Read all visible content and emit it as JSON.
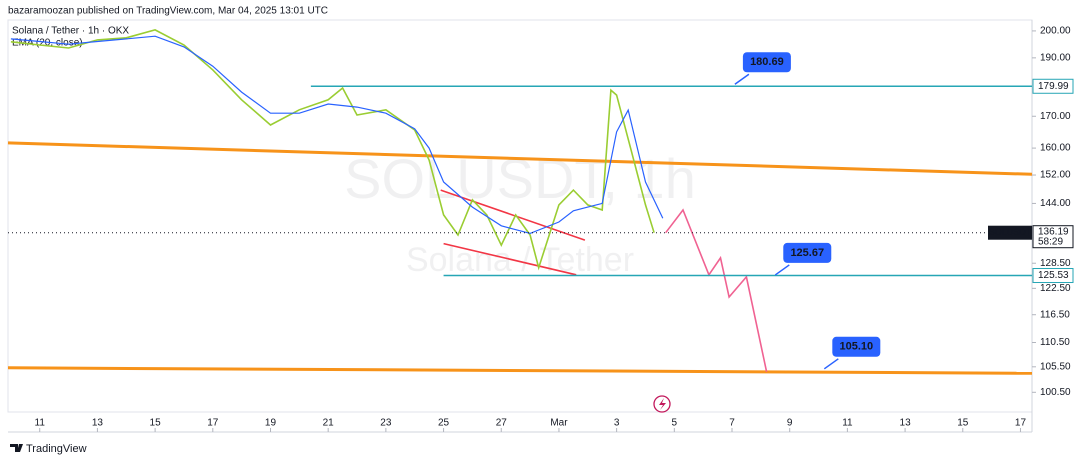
{
  "header": "bazaramoozan published on TradingView.com, Mar 04, 2025 13:01 UTC",
  "footer": "TradingView",
  "chart_data": {
    "type": "line",
    "title": "Solana / Tether · 1h · OKX",
    "indicator": "EMA (20, close)",
    "watermark": "SOLUSDT, 1h",
    "watermark_sub": "Solana / Tether",
    "log_scale": true,
    "xlim": [
      -1.1,
      34.4
    ],
    "xticks": [
      {
        "value": 0,
        "label": "11"
      },
      {
        "value": 2,
        "label": "13"
      },
      {
        "value": 4,
        "label": "15"
      },
      {
        "value": 6,
        "label": "17"
      },
      {
        "value": 8,
        "label": "19"
      },
      {
        "value": 10,
        "label": "21"
      },
      {
        "value": 12,
        "label": "23"
      },
      {
        "value": 14,
        "label": "25"
      },
      {
        "value": 16,
        "label": "27"
      },
      {
        "value": 18,
        "label": "Mar"
      },
      {
        "value": 20,
        "label": "3"
      },
      {
        "value": 22,
        "label": "5"
      },
      {
        "value": 24,
        "label": "7"
      },
      {
        "value": 26,
        "label": "9"
      },
      {
        "value": 28,
        "label": "11"
      },
      {
        "value": 30,
        "label": "13"
      },
      {
        "value": 32,
        "label": "15"
      },
      {
        "value": 34,
        "label": "17"
      }
    ],
    "ylim": [
      96.8,
      204.2
    ],
    "yticks": [
      {
        "value": 200,
        "label": "200.00"
      },
      {
        "value": 190,
        "label": "190.00"
      },
      {
        "value": 170,
        "label": "170.00"
      },
      {
        "value": 160,
        "label": "160.00"
      },
      {
        "value": 152,
        "label": "152.00"
      },
      {
        "value": 144,
        "label": "144.00"
      },
      {
        "value": 128.5,
        "label": "128.50"
      },
      {
        "value": 122.5,
        "label": "122.50"
      },
      {
        "value": 116.5,
        "label": "116.50"
      },
      {
        "value": 110.5,
        "label": "110.50"
      },
      {
        "value": 105.5,
        "label": "105.50"
      },
      {
        "value": 100.5,
        "label": "100.50"
      }
    ],
    "series": [
      {
        "name": "SOLUSDT",
        "color": "#9acd32",
        "x": [
          -1,
          0,
          1,
          2,
          3,
          4,
          5,
          6,
          7,
          8,
          9,
          10,
          10.5,
          11,
          12,
          13,
          13.5,
          14,
          14.5,
          15,
          15.5,
          16,
          16.5,
          17,
          17.3,
          18,
          18.5,
          19,
          19.5,
          19.8,
          20,
          20.5,
          21,
          21.3
        ],
        "values": [
          195.9,
          194.7,
          193.6,
          196.6,
          197.4,
          200.4,
          194.7,
          185.7,
          175.4,
          167.2,
          172.1,
          175.4,
          179.4,
          170.4,
          172.1,
          165.6,
          156.4,
          140.9,
          135.6,
          145.0,
          140.9,
          133.0,
          140.9,
          135.6,
          127.4,
          143.6,
          147.7,
          143.6,
          142.2,
          178.7,
          177.0,
          159.4,
          143.6,
          136.2
        ]
      },
      {
        "name": "EMA (20, close)",
        "color": "#2962ff",
        "x": [
          -1,
          0,
          1,
          2,
          3,
          4,
          5,
          6,
          7,
          8,
          9,
          10,
          11,
          12,
          13,
          13.5,
          14,
          15,
          16,
          17,
          18,
          18.5,
          19,
          19.5,
          20,
          20.4,
          21,
          21.6
        ],
        "values": [
          197,
          196,
          195,
          196,
          197,
          198,
          194,
          187,
          178,
          171,
          171,
          174,
          173,
          171,
          166,
          160,
          150,
          143,
          138,
          136,
          139,
          142,
          143,
          144,
          165,
          172,
          150,
          140
        ]
      }
    ],
    "last_price": {
      "symbol": "SOLUSDT",
      "value": 136.19,
      "countdown": "58:29"
    },
    "levels": [
      {
        "value": 179.99,
        "x_start": 9.4,
        "color": "#26a6b5"
      },
      {
        "value": 125.53,
        "x_start": 14.0,
        "color": "#26a6b5"
      }
    ],
    "trendlines": [
      {
        "color": "#f7931a",
        "x": [
          -1.1,
          34.4
        ],
        "values": [
          161.6,
          152.2
        ]
      },
      {
        "color": "#f7931a",
        "x": [
          -1.1,
          34.4
        ],
        "values": [
          105.3,
          104.2
        ]
      },
      {
        "color": "#f23645",
        "x": [
          13.9,
          18.9
        ],
        "values": [
          147.7,
          134.3
        ]
      },
      {
        "color": "#f23645",
        "x": [
          14.0,
          18.6
        ],
        "values": [
          133.4,
          125.7
        ]
      },
      {
        "color": "#f06292",
        "x": [
          21.7,
          22.3,
          23.2,
          23.6,
          23.9,
          24.5,
          25.2
        ],
        "values": [
          136.2,
          142.2,
          125.7,
          129.8,
          120.5,
          125.2,
          104.5
        ]
      }
    ],
    "callouts": [
      {
        "x": 24.1,
        "value": 180.69,
        "label": "180.69"
      },
      {
        "x": 25.5,
        "value": 125.67,
        "label": "125.67"
      },
      {
        "x": 27.2,
        "value": 105.1,
        "label": "105.10"
      }
    ]
  }
}
